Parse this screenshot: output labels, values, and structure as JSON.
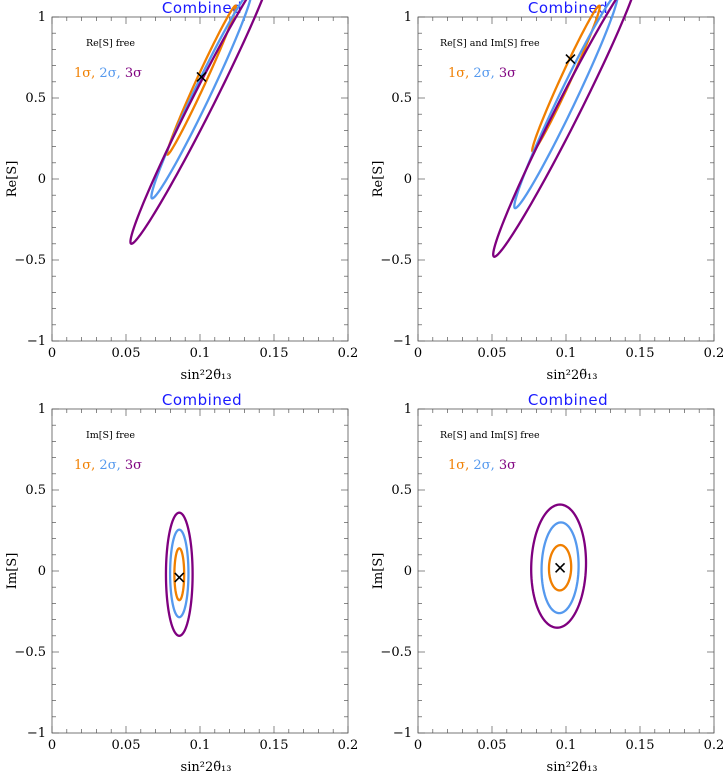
{
  "chart_data": [
    {
      "type": "contour",
      "title": "Combined",
      "xlabel": "sin²2θ̃₁₃",
      "ylabel": "Re[S]",
      "xlim": [
        0,
        0.2
      ],
      "ylim": [
        -1,
        1
      ],
      "xticks": [
        "0",
        "0.05",
        "0.1",
        "0.15",
        "0.2"
      ],
      "yticks": [
        "−1",
        "−0.5",
        "0",
        "0.5",
        "1"
      ],
      "annotation": "Re[S] free",
      "legend": [
        "1σ",
        "2σ",
        "3σ"
      ],
      "best_fit": {
        "x": 0.101,
        "y": 0.63
      },
      "contours": [
        {
          "name": "1σ",
          "color": "#f07f00",
          "cx": 0.101,
          "cy": 0.61,
          "a": 0.0035,
          "b": 0.46,
          "slope": 0.05,
          "rot": 0.0
        },
        {
          "name": "2σ",
          "color": "#5599ee",
          "cx": 0.101,
          "cy": 0.52,
          "a": 0.0062,
          "b": 0.64,
          "slope": 0.052,
          "rot": 0.0
        },
        {
          "name": "3σ",
          "color": "#7f007f",
          "cx": 0.101,
          "cy": 0.46,
          "a": 0.0082,
          "b": 0.86,
          "slope": 0.055,
          "rot": 0.0
        }
      ]
    },
    {
      "type": "contour",
      "title": "Combined",
      "xlabel": "sin²2θ̃₁₃",
      "ylabel": "Re[S]",
      "xlim": [
        0,
        0.2
      ],
      "ylim": [
        -1,
        1
      ],
      "xticks": [
        "0",
        "0.05",
        "0.1",
        "0.15",
        "0.2"
      ],
      "yticks": [
        "−1",
        "−0.5",
        "0",
        "0.5",
        "1"
      ],
      "annotation": "Re[S] and Im[S] free",
      "legend": [
        "1σ",
        "2σ",
        "3σ"
      ],
      "best_fit": {
        "x": 0.103,
        "y": 0.74
      },
      "contours": [
        {
          "name": "1σ",
          "color": "#f07f00",
          "cx": 0.1,
          "cy": 0.62,
          "a": 0.0038,
          "b": 0.45,
          "slope": 0.05,
          "rot": 0.0
        },
        {
          "name": "2σ",
          "color": "#5599ee",
          "cx": 0.1,
          "cy": 0.48,
          "a": 0.0065,
          "b": 0.66,
          "slope": 0.052,
          "rot": 0.0
        },
        {
          "name": "3σ",
          "color": "#7f007f",
          "cx": 0.1,
          "cy": 0.4,
          "a": 0.0088,
          "b": 0.88,
          "slope": 0.055,
          "rot": 0.0
        }
      ]
    },
    {
      "type": "contour",
      "title": "Combined",
      "xlabel": "sin²2θ̃₁₃",
      "ylabel": "Im[S]",
      "xlim": [
        0,
        0.2
      ],
      "ylim": [
        -1,
        1
      ],
      "xticks": [
        "0",
        "0.05",
        "0.1",
        "0.15",
        "0.2"
      ],
      "yticks": [
        "−1",
        "−0.5",
        "0",
        "0.5",
        "1"
      ],
      "annotation": "Im[S] free",
      "legend": [
        "1σ",
        "2σ",
        "3σ"
      ],
      "best_fit": {
        "x": 0.086,
        "y": -0.04
      },
      "contours": [
        {
          "name": "1σ",
          "color": "#f07f00",
          "cx": 0.086,
          "cy": -0.02,
          "a": 0.0033,
          "b": 0.16,
          "slope": 0.0,
          "rot": 0.0
        },
        {
          "name": "2σ",
          "color": "#5599ee",
          "cx": 0.086,
          "cy": -0.015,
          "a": 0.0062,
          "b": 0.27,
          "slope": 0.0,
          "rot": 0.0
        },
        {
          "name": "3σ",
          "color": "#7f007f",
          "cx": 0.086,
          "cy": -0.02,
          "a": 0.009,
          "b": 0.38,
          "slope": 0.0,
          "rot": 0.0
        }
      ]
    },
    {
      "type": "contour",
      "title": "Combined",
      "xlabel": "sin²2θ̃₁₃",
      "ylabel": "Im[S]",
      "xlim": [
        0,
        0.2
      ],
      "ylim": [
        -1,
        1
      ],
      "xticks": [
        "0",
        "0.05",
        "0.1",
        "0.15",
        "0.2"
      ],
      "yticks": [
        "−1",
        "−0.5",
        "0",
        "0.5",
        "1"
      ],
      "annotation": "Re[S] and Im[S] free",
      "legend": [
        "1σ",
        "2σ",
        "3σ"
      ],
      "best_fit": {
        "x": 0.096,
        "y": 0.02
      },
      "contours": [
        {
          "name": "1σ",
          "color": "#f07f00",
          "cx": 0.096,
          "cy": 0.02,
          "a": 0.0075,
          "b": 0.14,
          "slope": 0.0,
          "rot": 0.04
        },
        {
          "name": "2σ",
          "color": "#5599ee",
          "cx": 0.096,
          "cy": 0.02,
          "a": 0.0125,
          "b": 0.28,
          "slope": 0.0,
          "rot": 0.04
        },
        {
          "name": "3σ",
          "color": "#7f007f",
          "cx": 0.095,
          "cy": 0.03,
          "a": 0.0185,
          "b": 0.38,
          "slope": 0.0,
          "rot": 0.05
        }
      ]
    }
  ]
}
